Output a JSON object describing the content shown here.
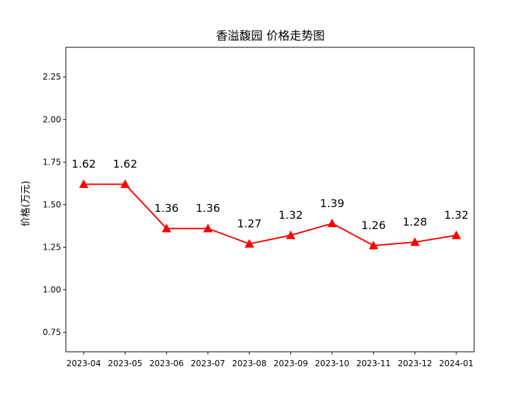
{
  "chart_data": {
    "type": "line",
    "title": "香溢馥园 价格走势图",
    "xlabel": "",
    "ylabel": "价格(万元)",
    "categories": [
      "2023-04",
      "2023-05",
      "2023-06",
      "2023-07",
      "2023-08",
      "2023-09",
      "2023-10",
      "2023-11",
      "2023-12",
      "2024-01"
    ],
    "series": [
      {
        "values": [
          1.62,
          1.62,
          1.36,
          1.36,
          1.27,
          1.32,
          1.39,
          1.26,
          1.28,
          1.32
        ],
        "labels": [
          "1.62",
          "1.62",
          "1.36",
          "1.36",
          "1.27",
          "1.32",
          "1.39",
          "1.26",
          "1.28",
          "1.32"
        ],
        "color": "#ff0000",
        "marker": "triangle-up"
      }
    ],
    "ylim": [
      0.636,
      2.424
    ],
    "yticks": [
      0.75,
      1.0,
      1.25,
      1.5,
      1.75,
      2.0,
      2.25
    ],
    "ytick_labels": [
      "0.75",
      "1.00",
      "1.25",
      "1.50",
      "1.75",
      "2.00",
      "2.25"
    ],
    "grid": false,
    "legend": "none"
  }
}
